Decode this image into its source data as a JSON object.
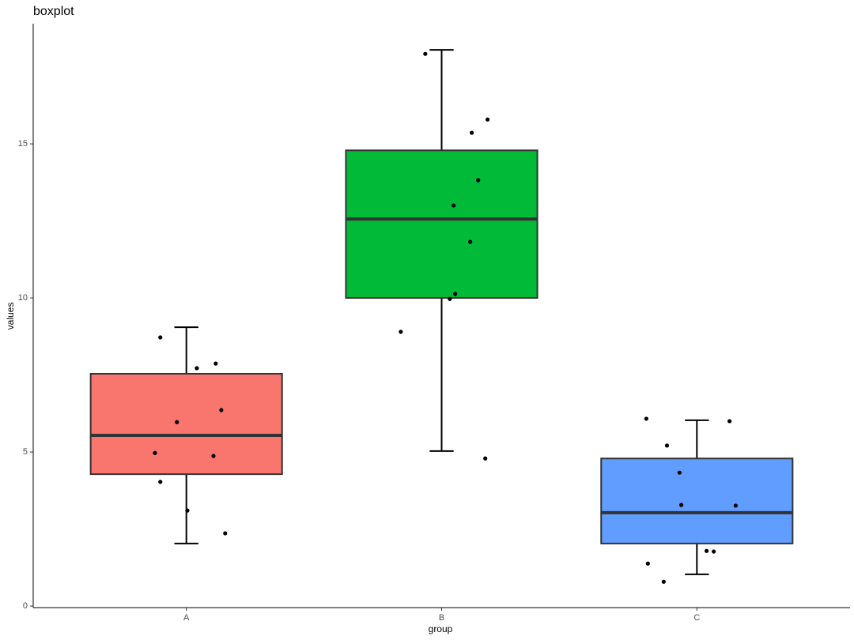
{
  "chart_data": {
    "type": "box",
    "title": "boxplot",
    "x_label": "group",
    "y_label": "values",
    "categories": [
      "A",
      "B",
      "C"
    ],
    "xlim": [
      0.4,
      3.6
    ],
    "ylim": [
      -0.05,
      18.9
    ],
    "yticks": [
      0,
      5,
      10,
      15
    ],
    "boxes": [
      {
        "color": "#F8766D",
        "whisker_low": 2.03,
        "q1": 4.28,
        "median": 5.54,
        "q3": 7.54,
        "whisker_high": 9.05,
        "points": {
          "x": [
            0.898,
            1.041,
            1.115,
            1.137,
            0.963,
            0.877,
            1.106,
            0.898,
            1.004,
            1.152
          ],
          "y": [
            8.72,
            7.72,
            7.87,
            6.36,
            5.97,
            4.97,
            4.87,
            4.03,
            3.1,
            2.36
          ]
        }
      },
      {
        "color": "#00BA38",
        "whisker_low": 5.03,
        "q1": 10.0,
        "median": 12.56,
        "q3": 14.79,
        "whisker_high": 18.05,
        "points": {
          "x": [
            1.936,
            2.18,
            2.118,
            2.143,
            2.047,
            2.112,
            2.053,
            2.032,
            1.84,
            2.171
          ],
          "y": [
            17.92,
            15.79,
            15.36,
            13.82,
            13.0,
            11.82,
            10.13,
            9.97,
            8.9,
            4.79
          ]
        }
      },
      {
        "color": "#619CFF",
        "whisker_low": 1.03,
        "q1": 2.03,
        "median": 3.03,
        "q3": 4.79,
        "whisker_high": 6.03,
        "points": {
          "x": [
            2.802,
            3.128,
            2.883,
            2.932,
            2.939,
            3.152,
            3.038,
            3.066,
            2.808,
            2.87
          ],
          "y": [
            6.08,
            6.0,
            5.21,
            4.33,
            3.28,
            3.26,
            1.79,
            1.77,
            1.38,
            0.79
          ]
        }
      }
    ]
  }
}
